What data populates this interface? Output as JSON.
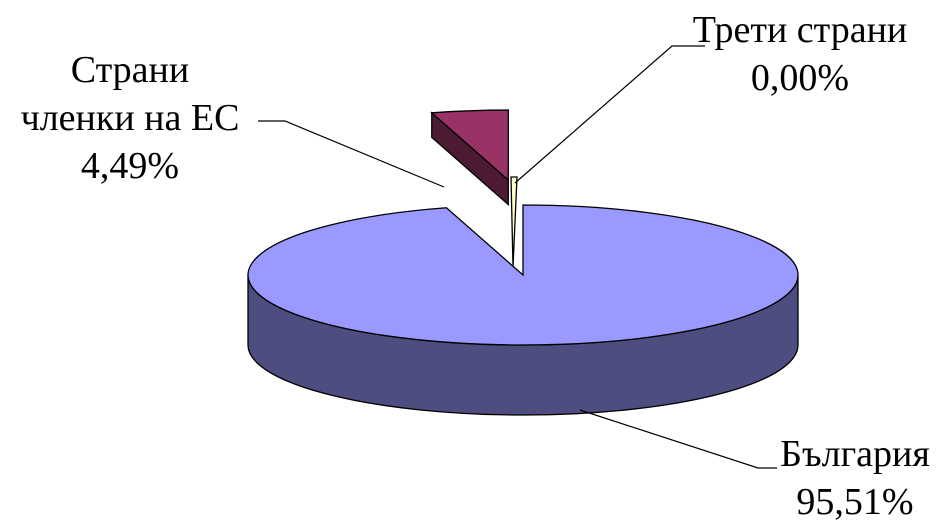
{
  "chart_data": {
    "type": "pie",
    "style": "3d-exploded",
    "legend": "none",
    "slices": [
      {
        "label_lines": [
          "България"
        ],
        "value_text": "95,51%",
        "value": 95.51,
        "color": "#9999FF",
        "side_color": "#4D4D80"
      },
      {
        "label_lines": [
          "Страни",
          "членки на ЕС"
        ],
        "value_text": "4,49%",
        "value": 4.49,
        "color": "#993366",
        "side_color": "#4D1A33"
      },
      {
        "label_lines": [
          "Трети страни"
        ],
        "value_text": "0,00%",
        "value": 0.0,
        "color": "#FFFFCC",
        "side_color": "#80804D"
      }
    ]
  }
}
